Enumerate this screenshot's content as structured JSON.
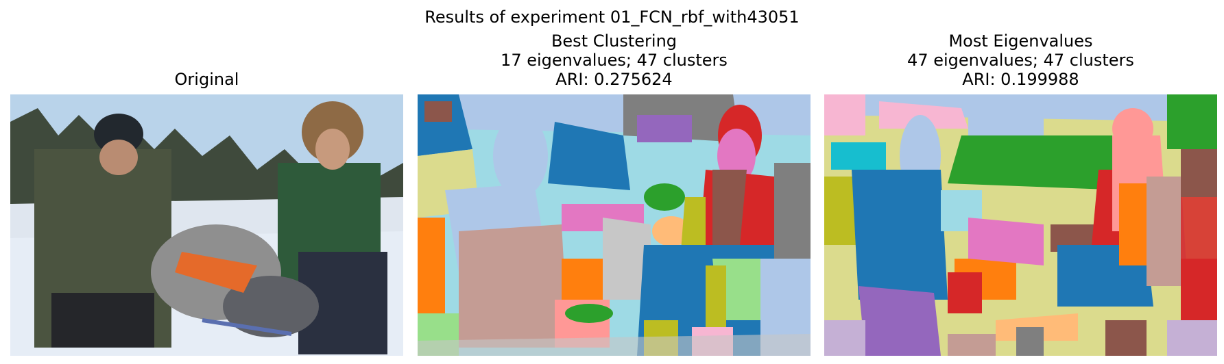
{
  "figure": {
    "suptitle": "Results of experiment 01_FCN_rbf_with43051"
  },
  "panels": [
    {
      "id": "original",
      "title_lines": [
        "Original"
      ]
    },
    {
      "id": "best",
      "title_lines": [
        "Best Clustering",
        "17 eigenvalues; 47 clusters",
        "ARI: 0.275624"
      ]
    },
    {
      "id": "most",
      "title_lines": [
        "Most Eigenvalues",
        "47 eigenvalues; 47 clusters",
        "ARI: 0.199988"
      ]
    }
  ],
  "palette": {
    "sky": "#b9d3ea",
    "snow": "#e6edf6",
    "trees": "#3f4a3c",
    "plaid_jacket": "#4b5440",
    "green_jacket": "#2e5a3a",
    "fur_hat": "#8e6a45",
    "dog_grey": "#8f8f8f",
    "harness_orange": "#e56a2a",
    "tab_blue": "#1f77b4",
    "tab_orange": "#ff7f0e",
    "tab_green": "#2ca02c",
    "tab_red": "#d62728",
    "tab_purple": "#9467bd",
    "tab_brown": "#8c564b",
    "tab_pink": "#e377c2",
    "tab_grey": "#7f7f7f",
    "tab_olive": "#bcbd22",
    "tab_cyan": "#17becf",
    "light_blue": "#aec7e8",
    "light_orange": "#ffbb78",
    "light_green": "#98df8a",
    "salmon": "#ff9896",
    "lavender": "#c5b0d5",
    "tan": "#c49c94",
    "light_pink": "#f7b6d2",
    "light_grey": "#c7c7c7",
    "khaki": "#dbdb8d",
    "pale_cyan": "#9edae5"
  }
}
